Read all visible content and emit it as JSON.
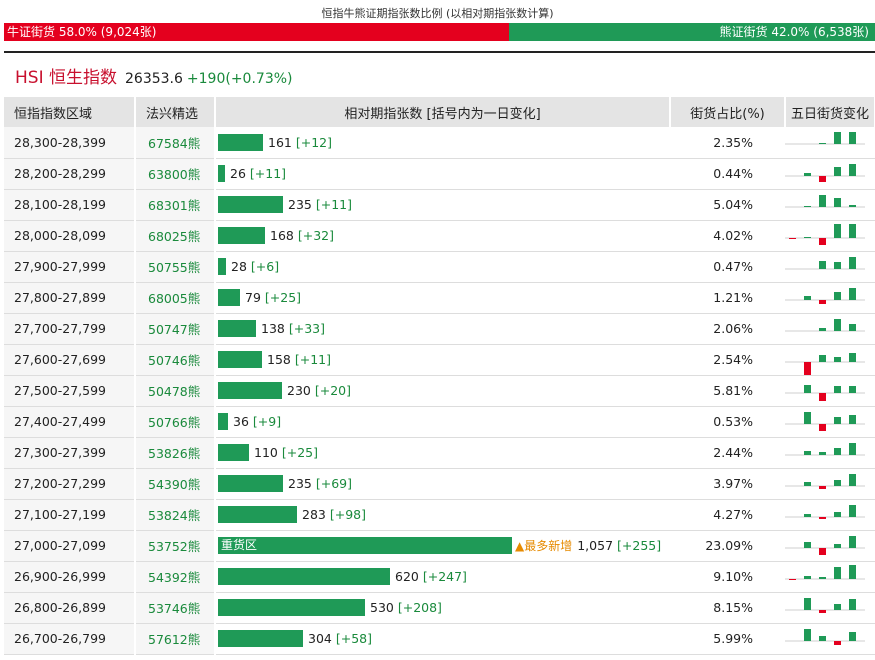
{
  "header": {
    "title": "恒指牛熊证期指张数比例 (以相对期指张数计算)"
  },
  "ratio": {
    "bull_label": "牛证街货 58.0% (9,024张)",
    "bull_pct": 58.0,
    "bear_label": "熊证街货 42.0% (6,538张)",
    "bear_pct": 42.0
  },
  "index": {
    "code": "HSI 恒生指数",
    "value": "26353.6",
    "change": "+190(+0.73%)"
  },
  "table": {
    "headers": {
      "range": "恒指指数区域",
      "pick": "法兴精选",
      "count": "相对期指张数 [括号内为一日变化]",
      "ratio": "街货占比(%)",
      "trend": "五日街货变化"
    },
    "max_count": 1057,
    "heavy_label": "重货区",
    "most_new_label": "▲最多新增",
    "rows": [
      {
        "range": "28,300-28,399",
        "code": "67584熊",
        "count": 161,
        "count_label": "161",
        "delta": "[+12]",
        "ratio": "2.35%",
        "trend": [
          0,
          0,
          1,
          12,
          12
        ]
      },
      {
        "range": "28,200-28,299",
        "code": "63800熊",
        "count": 26,
        "count_label": "26",
        "delta": "[+11]",
        "ratio": "0.44%",
        "trend": [
          0,
          3,
          -6,
          9,
          12
        ]
      },
      {
        "range": "28,100-28,199",
        "code": "68301熊",
        "count": 235,
        "count_label": "235",
        "delta": "[+11]",
        "ratio": "5.04%",
        "trend": [
          0,
          1,
          12,
          9,
          2
        ]
      },
      {
        "range": "28,000-28,099",
        "code": "68025熊",
        "count": 168,
        "count_label": "168",
        "delta": "[+32]",
        "ratio": "4.02%",
        "trend": [
          -1,
          1,
          -7,
          14,
          14
        ]
      },
      {
        "range": "27,900-27,999",
        "code": "50755熊",
        "count": 28,
        "count_label": "28",
        "delta": "[+6]",
        "ratio": "0.47%",
        "trend": [
          0,
          0,
          8,
          7,
          12
        ]
      },
      {
        "range": "27,800-27,899",
        "code": "68005熊",
        "count": 79,
        "count_label": "79",
        "delta": "[+25]",
        "ratio": "1.21%",
        "trend": [
          0,
          4,
          -4,
          8,
          12
        ]
      },
      {
        "range": "27,700-27,799",
        "code": "50747熊",
        "count": 138,
        "count_label": "138",
        "delta": "[+33]",
        "ratio": "2.06%",
        "trend": [
          0,
          0,
          3,
          12,
          7
        ]
      },
      {
        "range": "27,600-27,699",
        "code": "50746熊",
        "count": 158,
        "count_label": "158",
        "delta": "[+11]",
        "ratio": "2.54%",
        "trend": [
          0,
          -14,
          7,
          5,
          9
        ]
      },
      {
        "range": "27,500-27,599",
        "code": "50478熊",
        "count": 230,
        "count_label": "230",
        "delta": "[+20]",
        "ratio": "5.81%",
        "trend": [
          0,
          8,
          -8,
          7,
          7
        ]
      },
      {
        "range": "27,400-27,499",
        "code": "50766熊",
        "count": 36,
        "count_label": "36",
        "delta": "[+9]",
        "ratio": "0.53%",
        "trend": [
          0,
          12,
          -7,
          7,
          9
        ]
      },
      {
        "range": "27,300-27,399",
        "code": "53826熊",
        "count": 110,
        "count_label": "110",
        "delta": "[+25]",
        "ratio": "2.44%",
        "trend": [
          0,
          4,
          3,
          7,
          12
        ]
      },
      {
        "range": "27,200-27,299",
        "code": "54390熊",
        "count": 235,
        "count_label": "235",
        "delta": "[+69]",
        "ratio": "3.97%",
        "trend": [
          0,
          4,
          -3,
          6,
          12
        ]
      },
      {
        "range": "27,100-27,199",
        "code": "53824熊",
        "count": 283,
        "count_label": "283",
        "delta": "[+98]",
        "ratio": "4.27%",
        "trend": [
          0,
          3,
          -2,
          5,
          12
        ]
      },
      {
        "range": "27,000-27,099",
        "code": "53752熊",
        "count": 1057,
        "count_label": "1,057",
        "delta": "[+255]",
        "ratio": "23.09%",
        "trend": [
          0,
          6,
          -7,
          4,
          12
        ],
        "heavy": true,
        "most_new": true
      },
      {
        "range": "26,900-26,999",
        "code": "54392熊",
        "count": 620,
        "count_label": "620",
        "delta": "[+247]",
        "ratio": "9.10%",
        "trend": [
          -1,
          3,
          2,
          12,
          14
        ]
      },
      {
        "range": "26,800-26,899",
        "code": "53746熊",
        "count": 530,
        "count_label": "530",
        "delta": "[+208]",
        "ratio": "8.15%",
        "trend": [
          0,
          12,
          -3,
          6,
          11
        ]
      },
      {
        "range": "26,700-26,799",
        "code": "57612熊",
        "count": 304,
        "count_label": "304",
        "delta": "[+58]",
        "ratio": "5.99%",
        "trend": [
          0,
          12,
          5,
          -4,
          9
        ]
      }
    ]
  },
  "colors": {
    "bull": "#e4001e",
    "bear": "#1f9a57",
    "up_text": "#1a8a3c",
    "title_red": "#c8102e",
    "accent_orange": "#e68a00"
  }
}
